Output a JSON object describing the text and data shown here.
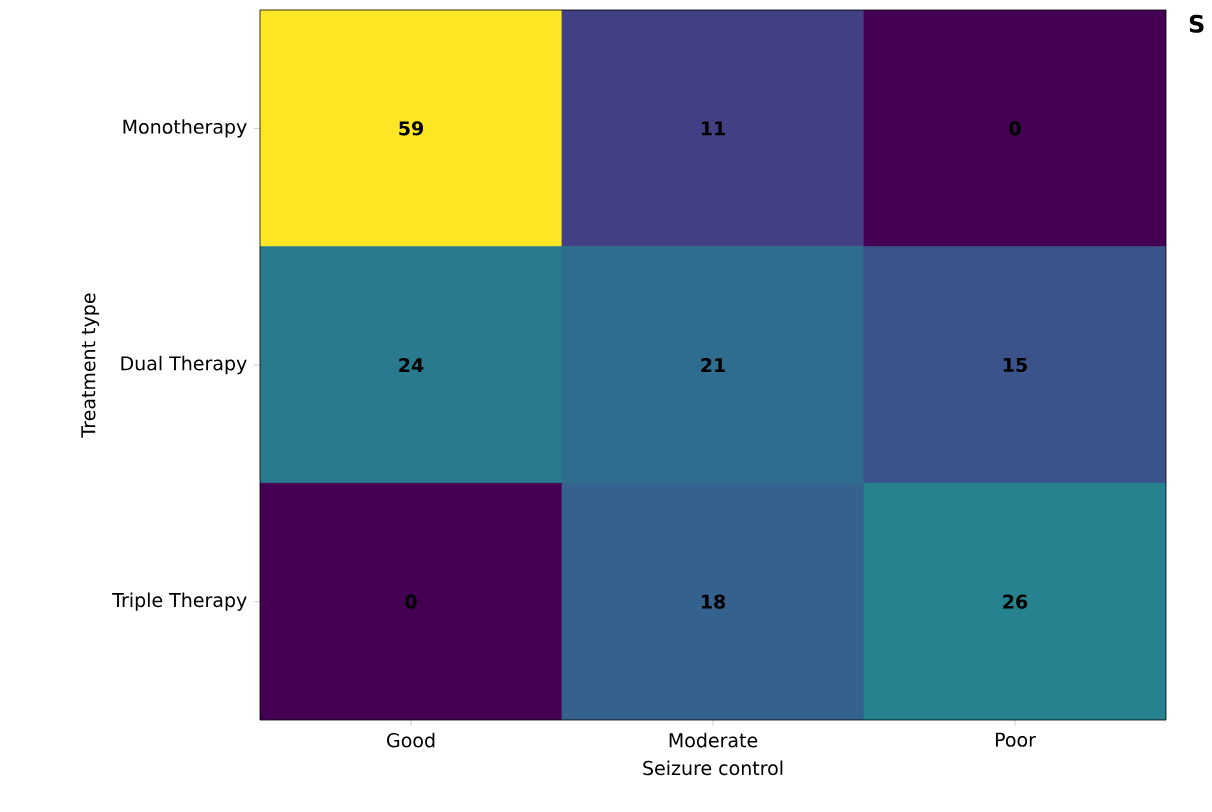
{
  "chart_data": {
    "type": "heatmap",
    "categories": [
      "Good",
      "Moderate",
      "Poor"
    ],
    "y_categories": [
      "Monotherapy",
      "Dual Therapy",
      "Triple Therapy"
    ],
    "cells": [
      [
        59,
        11,
        0
      ],
      [
        24,
        21,
        15
      ],
      [
        0,
        18,
        26
      ]
    ],
    "data_labels": true,
    "xlabel": "Seizure control",
    "ylabel": "Treatment type",
    "annotations": [
      "S"
    ]
  }
}
